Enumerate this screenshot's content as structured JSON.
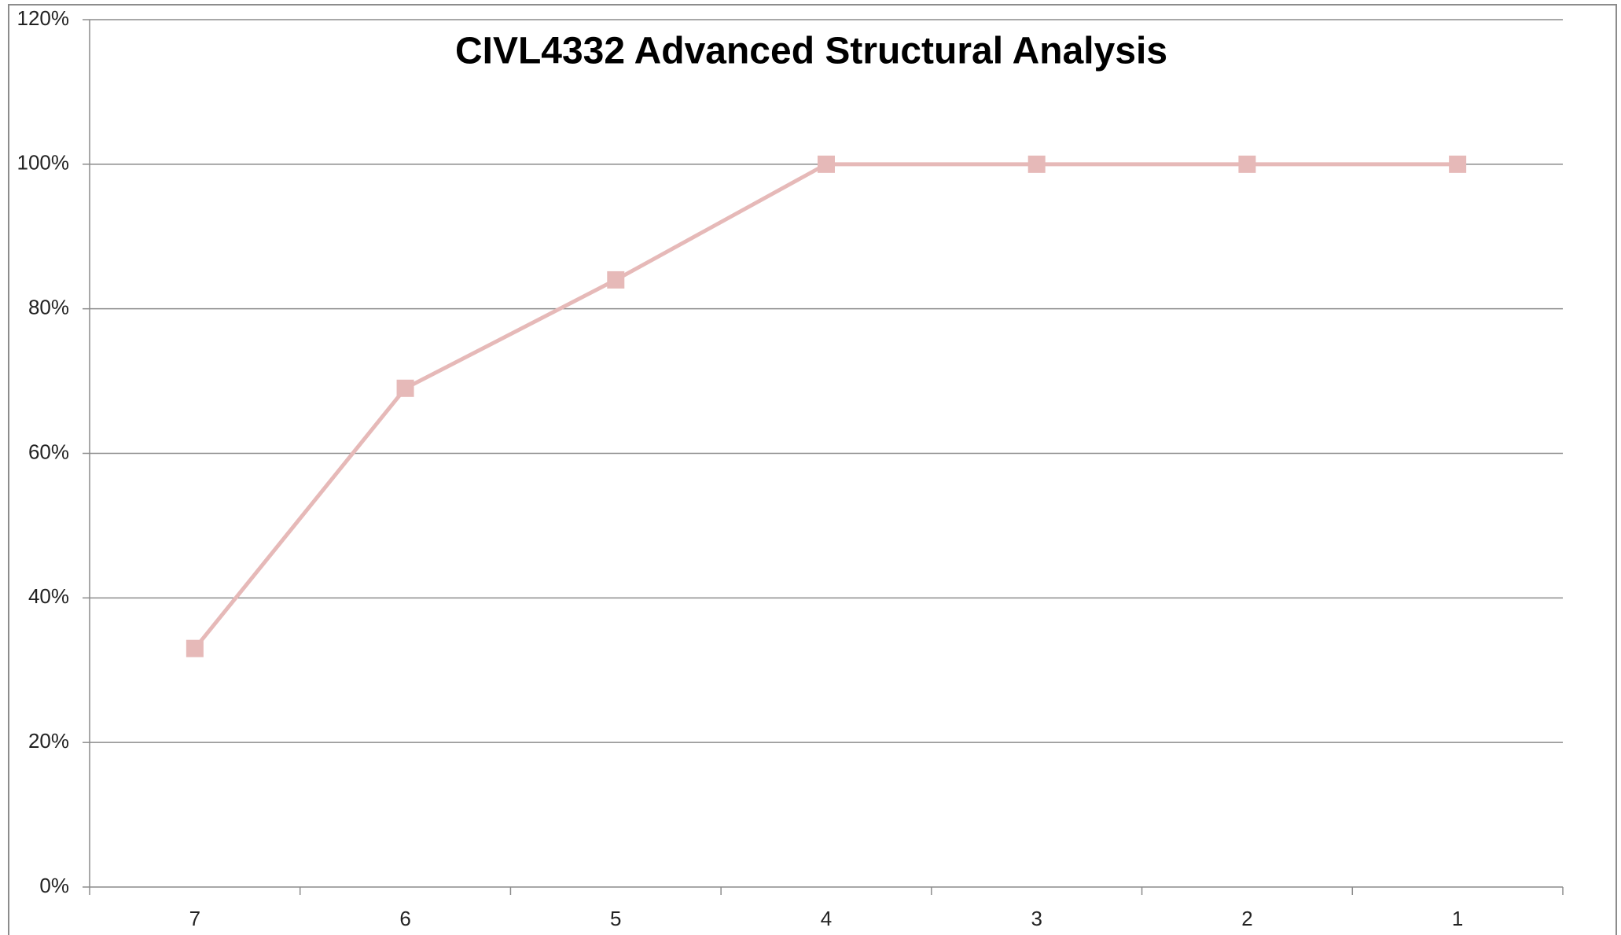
{
  "chart_data": {
    "type": "line",
    "title": "CIVL4332 Advanced Structural Analysis",
    "categories": [
      "7",
      "6",
      "5",
      "4",
      "3",
      "2",
      "1"
    ],
    "series": [
      {
        "name": "",
        "color": "#e6b9b8",
        "values": [
          33,
          69,
          84,
          100,
          100,
          100,
          100
        ]
      }
    ],
    "ylim": [
      0,
      120
    ],
    "yticks": [
      {
        "value": 0,
        "label": "0%"
      },
      {
        "value": 20,
        "label": "20%"
      },
      {
        "value": 40,
        "label": "40%"
      },
      {
        "value": 60,
        "label": "60%"
      },
      {
        "value": 80,
        "label": "80%"
      },
      {
        "value": 100,
        "label": "100%"
      },
      {
        "value": 120,
        "label": "120%"
      }
    ],
    "grid": true
  }
}
